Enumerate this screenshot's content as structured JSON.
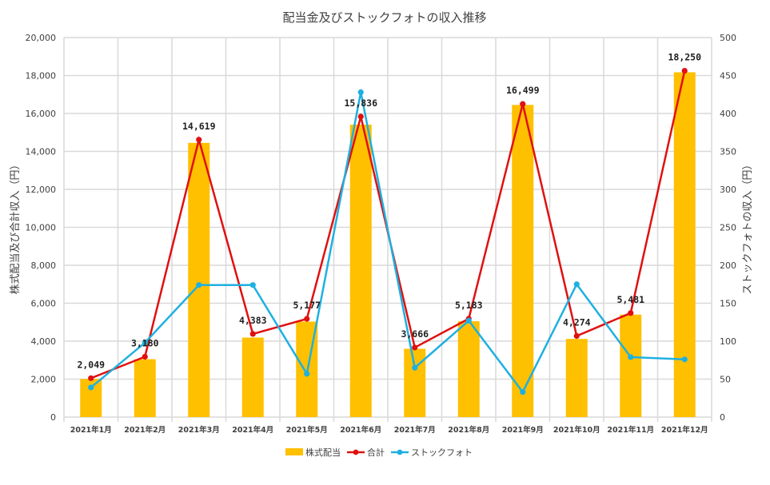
{
  "chart_data": {
    "type": "bar",
    "title": "配当金及びストックフォトの収入推移",
    "categories": [
      "2021年1月",
      "2021年2月",
      "2021年3月",
      "2021年4月",
      "2021年5月",
      "2021年6月",
      "2021年7月",
      "2021年8月",
      "2021年9月",
      "2021年10月",
      "2021年11月",
      "2021年12月"
    ],
    "ylabel_left": "株式配当及び合計収入（円）",
    "ylabel_right": "ストックフォトの収入（円）",
    "ylim_left": [
      0,
      20000
    ],
    "ylim_right": [
      0,
      500
    ],
    "yticks_left": [
      "0",
      "2,000",
      "4,000",
      "6,000",
      "8,000",
      "10,000",
      "12,000",
      "14,000",
      "16,000",
      "18,000",
      "20,000"
    ],
    "yticks_right": [
      "0",
      "50",
      "100",
      "150",
      "200",
      "250",
      "300",
      "350",
      "400",
      "450",
      "500"
    ],
    "grid": true,
    "legend_position": "bottom",
    "series": [
      {
        "name": "株式配当",
        "type": "bar",
        "axis": "left",
        "color": "#FFC000",
        "values": [
          2010,
          3050,
          14450,
          4190,
          5030,
          15410,
          3600,
          5050,
          16450,
          4120,
          5400,
          18170
        ]
      },
      {
        "name": "合計",
        "type": "line",
        "axis": "left",
        "color": "#E01010",
        "values": [
          2049,
          3180,
          14619,
          4383,
          5177,
          15836,
          3666,
          5183,
          16499,
          4274,
          5481,
          18250
        ]
      },
      {
        "name": "ストックフォト",
        "type": "line",
        "axis": "right",
        "color": "#1EB0E0",
        "values": [
          39,
          98,
          174,
          174,
          57,
          428,
          65,
          127,
          33,
          175,
          79,
          76
        ]
      }
    ],
    "data_labels": [
      "2,049",
      "3,180",
      "14,619",
      "4,383",
      "5,177",
      "15,836",
      "3,666",
      "5,183",
      "16,499",
      "4,274",
      "5,481",
      "18,250"
    ]
  }
}
